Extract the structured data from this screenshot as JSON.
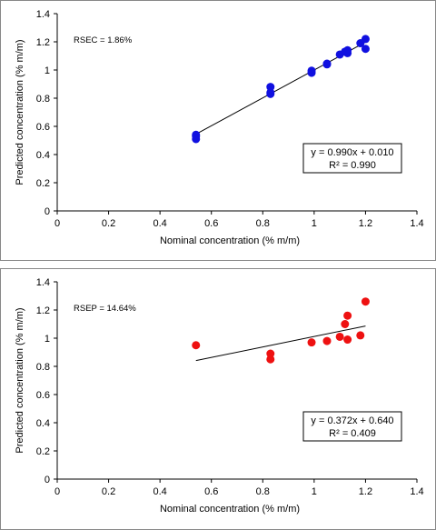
{
  "chart_data": [
    {
      "type": "scatter",
      "xlabel": "Nominal concentration (% m/m)",
      "ylabel": "Predicted concentration (% m/m)",
      "xlim": [
        0,
        1.4
      ],
      "ylim": [
        0,
        1.4
      ],
      "xticks": [
        "0",
        "0.2",
        "0.4",
        "0.6",
        "0.8",
        "1",
        "1.2",
        "1.4"
      ],
      "yticks": [
        "0",
        "0.2",
        "0.4",
        "0.6",
        "0.8",
        "1",
        "1.2",
        "1.4"
      ],
      "grid": false,
      "annotation": "RSEC = 1.86%",
      "marker_color": "#1010e0",
      "points": [
        {
          "x": 0.54,
          "y": 0.51
        },
        {
          "x": 0.54,
          "y": 0.53
        },
        {
          "x": 0.54,
          "y": 0.54
        },
        {
          "x": 0.83,
          "y": 0.83
        },
        {
          "x": 0.83,
          "y": 0.84
        },
        {
          "x": 0.83,
          "y": 0.88
        },
        {
          "x": 0.99,
          "y": 0.98
        },
        {
          "x": 0.99,
          "y": 0.995
        },
        {
          "x": 1.05,
          "y": 1.04
        },
        {
          "x": 1.05,
          "y": 1.045
        },
        {
          "x": 1.1,
          "y": 1.11
        },
        {
          "x": 1.12,
          "y": 1.13
        },
        {
          "x": 1.13,
          "y": 1.12
        },
        {
          "x": 1.13,
          "y": 1.14
        },
        {
          "x": 1.18,
          "y": 1.19
        },
        {
          "x": 1.2,
          "y": 1.15
        },
        {
          "x": 1.2,
          "y": 1.22
        }
      ],
      "trendline": {
        "slope": 0.99,
        "intercept": 0.01,
        "x_range": [
          0.54,
          1.2
        ]
      },
      "equation": "y = 0.990x + 0.010",
      "r2": "R² = 0.990"
    },
    {
      "type": "scatter",
      "xlabel": "Nominal concentration (% m/m)",
      "ylabel": "Predicted concentration (% m/m)",
      "xlim": [
        0,
        1.4
      ],
      "ylim": [
        0,
        1.4
      ],
      "xticks": [
        "0",
        "0.2",
        "0.4",
        "0.6",
        "0.8",
        "1",
        "1.2",
        "1.4"
      ],
      "yticks": [
        "0",
        "0.2",
        "0.4",
        "0.6",
        "0.8",
        "1",
        "1.2",
        "1.4"
      ],
      "grid": false,
      "annotation": "RSEP = 14.64%",
      "marker_color": "#ee1111",
      "points": [
        {
          "x": 0.54,
          "y": 0.95
        },
        {
          "x": 0.83,
          "y": 0.85
        },
        {
          "x": 0.83,
          "y": 0.89
        },
        {
          "x": 0.99,
          "y": 0.97
        },
        {
          "x": 1.05,
          "y": 0.98
        },
        {
          "x": 1.1,
          "y": 1.01
        },
        {
          "x": 1.12,
          "y": 1.1
        },
        {
          "x": 1.13,
          "y": 0.99
        },
        {
          "x": 1.13,
          "y": 1.16
        },
        {
          "x": 1.18,
          "y": 1.02
        },
        {
          "x": 1.2,
          "y": 1.26
        }
      ],
      "trendline": {
        "slope": 0.372,
        "intercept": 0.64,
        "x_range": [
          0.54,
          1.2
        ]
      },
      "equation": "y = 0.372x + 0.640",
      "r2": "R² = 0.409"
    }
  ]
}
